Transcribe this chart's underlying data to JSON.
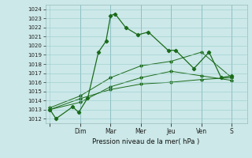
{
  "background_color": "#cce8e8",
  "grid_color": "#99cccc",
  "line_color": "#1a6b1a",
  "title": "Pression niveau de la mer( hPa )",
  "ylim": [
    1011.5,
    1024.5
  ],
  "yticks": [
    1012,
    1013,
    1014,
    1015,
    1016,
    1017,
    1018,
    1019,
    1020,
    1021,
    1022,
    1023,
    1024
  ],
  "xlabels": [
    "",
    "Dim",
    "Mar",
    "Mer",
    "Jeu",
    "Ven",
    "S"
  ],
  "x_positions": [
    0,
    2,
    4,
    6,
    8,
    10,
    12
  ],
  "xlim": [
    -0.3,
    13.0
  ],
  "series": [
    {
      "x": [
        0,
        0.4,
        1.5,
        1.9,
        2.5,
        3.2,
        3.7,
        4.0,
        4.3,
        5.0,
        5.8,
        6.5,
        7.8,
        8.3,
        9.5,
        10.5,
        11.3,
        12.0
      ],
      "y": [
        1013.0,
        1012.0,
        1013.3,
        1012.7,
        1014.3,
        1019.3,
        1020.5,
        1023.3,
        1023.5,
        1022.0,
        1021.2,
        1021.5,
        1019.5,
        1019.5,
        1017.5,
        1019.3,
        1016.5,
        1016.7
      ]
    },
    {
      "x": [
        0,
        2,
        4,
        6,
        8,
        10,
        12
      ],
      "y": [
        1013.2,
        1014.5,
        1016.5,
        1017.8,
        1018.3,
        1019.3,
        1016.5
      ]
    },
    {
      "x": [
        0,
        2,
        4,
        6,
        8,
        10,
        12
      ],
      "y": [
        1013.0,
        1013.8,
        1015.5,
        1016.5,
        1017.2,
        1016.7,
        1016.2
      ]
    },
    {
      "x": [
        0,
        2,
        4,
        6,
        8,
        10,
        12
      ],
      "y": [
        1013.0,
        1014.2,
        1015.2,
        1015.8,
        1016.0,
        1016.3,
        1016.5
      ]
    }
  ]
}
